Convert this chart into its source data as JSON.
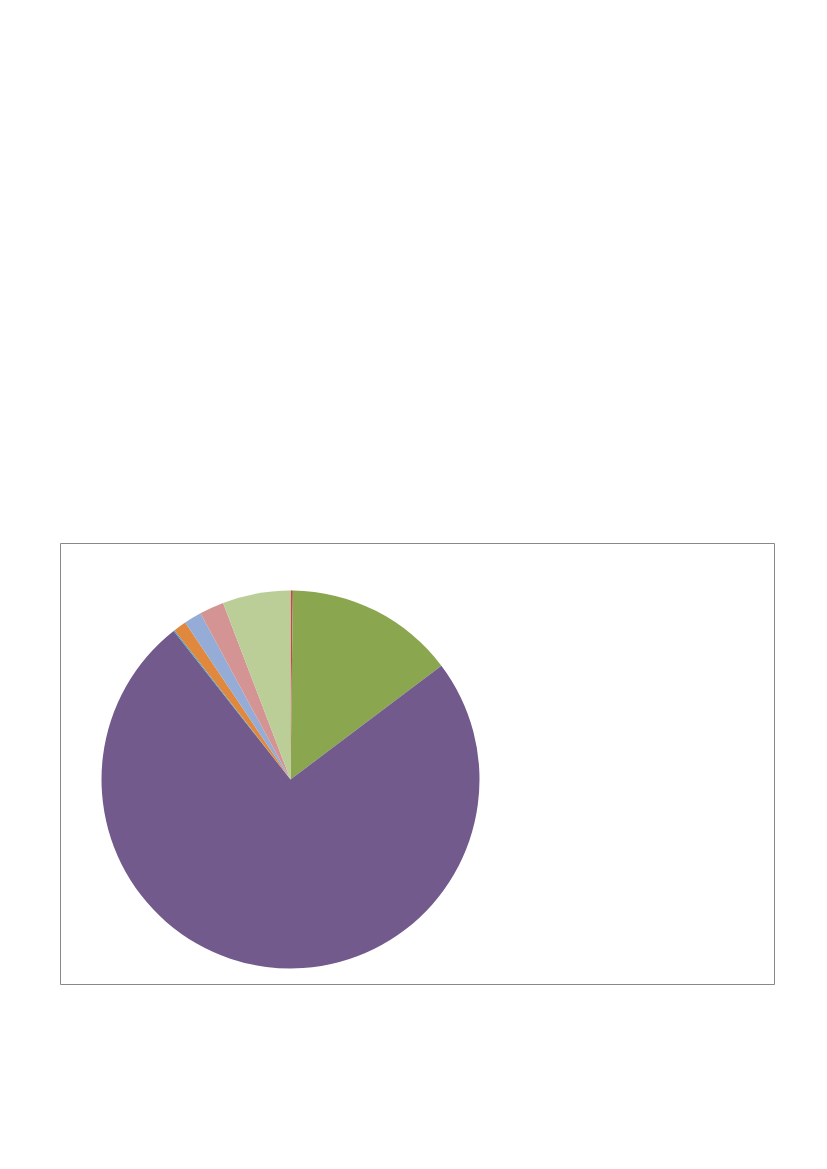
{
  "chart_data": {
    "type": "pie",
    "categories": [
      null,
      null,
      null,
      null,
      null,
      null,
      null,
      null,
      null
    ],
    "values": [
      null,
      0.2,
      14.5,
      74.6,
      0.1,
      1.1,
      1.5,
      2.1,
      5.8
    ],
    "colors": [
      "#4a7ebb",
      "#be4b48",
      "#8aa64f",
      "#725a8d",
      "#46a0b8",
      "#e0883e",
      "#95add6",
      "#d39493",
      "#bbce97"
    ]
  }
}
